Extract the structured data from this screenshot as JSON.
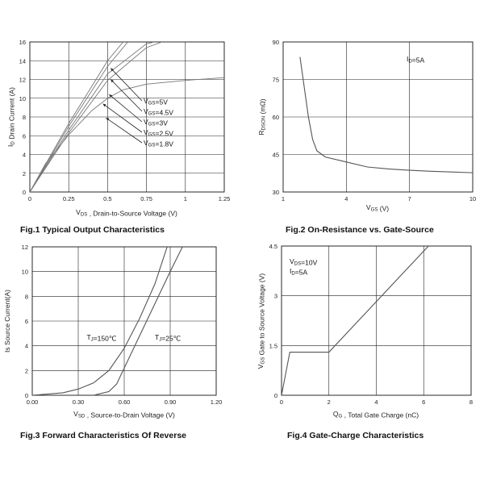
{
  "chart_data": [
    {
      "id": "fig1",
      "type": "line",
      "caption": "Fig.1 Typical Output Characteristics",
      "ylabel": "I_D Drain Current (A)",
      "xlabel": "V_DS , Drain-to-Source Voltage (V)",
      "xlim": [
        0,
        1.25
      ],
      "ylim": [
        0,
        16
      ],
      "xticks": [
        "0",
        "0.25",
        "0.5",
        "0.75",
        "1",
        "1.25"
      ],
      "yticks": [
        "0",
        "2",
        "4",
        "6",
        "8",
        "10",
        "12",
        "14",
        "16"
      ],
      "grid": true,
      "series": [
        {
          "name": "V_GS=5V",
          "points": [
            [
              0,
              0
            ],
            [
              0.25,
              7.3
            ],
            [
              0.5,
              14.0
            ],
            [
              0.6,
              16.0
            ]
          ]
        },
        {
          "name": "V_GS=4.5V",
          "points": [
            [
              0,
              0
            ],
            [
              0.25,
              7.0
            ],
            [
              0.5,
              13.4
            ],
            [
              0.63,
              16.0
            ]
          ]
        },
        {
          "name": "V_GS=3V",
          "points": [
            [
              0,
              0
            ],
            [
              0.25,
              6.6
            ],
            [
              0.5,
              12.6
            ],
            [
              0.75,
              15.8
            ],
            [
              0.8,
              16.0
            ]
          ]
        },
        {
          "name": "V_GS=2.5V",
          "points": [
            [
              0,
              0
            ],
            [
              0.25,
              6.3
            ],
            [
              0.5,
              11.9
            ],
            [
              0.75,
              15.4
            ],
            [
              0.85,
              16.0
            ]
          ]
        },
        {
          "name": "V_GS=1.8V",
          "points": [
            [
              0,
              0
            ],
            [
              0.1,
              3.0
            ],
            [
              0.25,
              6.1
            ],
            [
              0.4,
              8.7
            ],
            [
              0.5,
              10.0
            ],
            [
              0.6,
              10.9
            ],
            [
              0.75,
              11.5
            ],
            [
              1.0,
              11.9
            ],
            [
              1.25,
              12.2
            ]
          ]
        }
      ],
      "annotations": [
        {
          "text": "V_GS=5V",
          "pointer": [
            0.52,
            13.2
          ]
        },
        {
          "text": "V_GS=4.5V",
          "pointer": [
            0.52,
            12.0
          ]
        },
        {
          "text": "V_GS=3V",
          "pointer": [
            0.51,
            10.4
          ]
        },
        {
          "text": "V_GS=2.5V",
          "pointer": [
            0.47,
            9.4
          ]
        },
        {
          "text": "V_GS=1.8V",
          "pointer": [
            0.49,
            7.9
          ]
        }
      ]
    },
    {
      "id": "fig2",
      "type": "line",
      "caption": "Fig.2 On-Resistance vs. Gate-Source",
      "ylabel": "R_DSON (mΩ)",
      "xlabel": "V_GS (V)",
      "xlim": [
        1,
        10
      ],
      "ylim": [
        30,
        90
      ],
      "xticks": [
        "1",
        "4",
        "7",
        "10"
      ],
      "yticks": [
        "30",
        "45",
        "60",
        "75",
        "90"
      ],
      "grid": true,
      "annotation": "I_D=5A",
      "series": [
        {
          "points": [
            [
              1.8,
              84
            ],
            [
              2.0,
              72
            ],
            [
              2.2,
              60
            ],
            [
              2.4,
              51
            ],
            [
              2.6,
              46.5
            ],
            [
              3.0,
              44
            ],
            [
              4.0,
              42
            ],
            [
              5.0,
              40
            ],
            [
              6.0,
              39.2
            ],
            [
              7.0,
              38.7
            ],
            [
              8.0,
              38.3
            ],
            [
              9.0,
              38.0
            ],
            [
              10.0,
              37.7
            ]
          ]
        }
      ]
    },
    {
      "id": "fig3",
      "type": "line",
      "caption": "Fig.3 Forward Characteristics Of Reverse",
      "ylabel": "Is Source Current(A)",
      "xlabel": "V_SD , Source-to-Drain Voltage (V)",
      "xlim": [
        0,
        1.2
      ],
      "ylim": [
        0,
        12
      ],
      "xticks": [
        "0.00",
        "0.30",
        "0.60",
        "0.90",
        "1.20"
      ],
      "yticks": [
        "0",
        "2",
        "4",
        "6",
        "8",
        "10",
        "12"
      ],
      "grid": true,
      "series": [
        {
          "name": "T_J=150℃",
          "points": [
            [
              0,
              0
            ],
            [
              0.2,
              0.2
            ],
            [
              0.3,
              0.5
            ],
            [
              0.4,
              1.0
            ],
            [
              0.5,
              2.0
            ],
            [
              0.6,
              3.8
            ],
            [
              0.7,
              6.2
            ],
            [
              0.8,
              9.0
            ],
            [
              0.88,
              12.0
            ]
          ]
        },
        {
          "name": "T_J=25℃",
          "points": [
            [
              0.4,
              0
            ],
            [
              0.5,
              0.3
            ],
            [
              0.55,
              0.9
            ],
            [
              0.6,
              2.2
            ],
            [
              0.7,
              4.8
            ],
            [
              0.8,
              7.4
            ],
            [
              0.9,
              10.0
            ],
            [
              0.98,
              12.0
            ]
          ]
        }
      ],
      "annotations": [
        {
          "text": "T_J=150℃",
          "at": [
            0.355,
            4.5
          ]
        },
        {
          "text": "T_J=25℃",
          "at": [
            0.8,
            4.5
          ]
        }
      ]
    },
    {
      "id": "fig4",
      "type": "line",
      "caption": "Fig.4 Gate-Charge Characteristics",
      "ylabel": "V_GS Gate to Source Voltage (V)",
      "xlabel": "Q_G , Total Gate Charge (nC)",
      "xlim": [
        0,
        8
      ],
      "ylim": [
        0,
        4.5
      ],
      "xticks": [
        "0",
        "2",
        "4",
        "6",
        "8"
      ],
      "yticks": [
        "0",
        "1.5",
        "3",
        "4.5"
      ],
      "grid": true,
      "annotation_lines": [
        "V_DS=10V",
        "I_D=5A"
      ],
      "series": [
        {
          "points": [
            [
              0,
              0
            ],
            [
              0.35,
              1.3
            ],
            [
              2.0,
              1.3
            ],
            [
              6.2,
              4.5
            ]
          ]
        }
      ]
    }
  ]
}
